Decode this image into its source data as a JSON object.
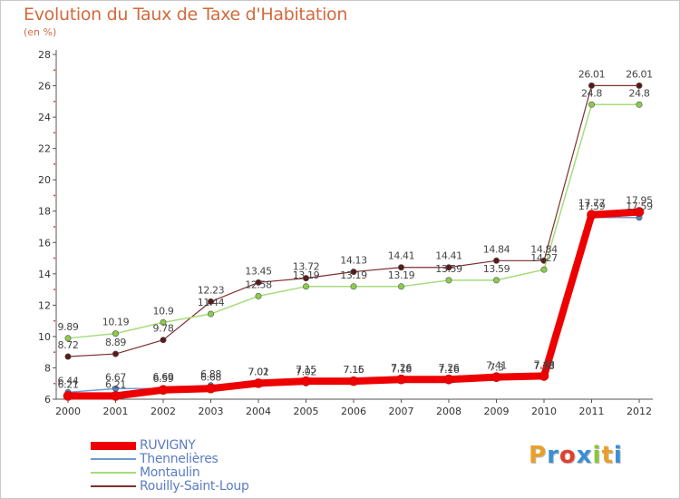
{
  "title": "Evolution du Taux de Taxe d'Habitation",
  "unit": "(en %)",
  "logo": {
    "text": "Proxiti",
    "colors": [
      "#e9a02a",
      "#3a8fd6",
      "#e0402e",
      "#3a8fd6",
      "#8cc43c",
      "#e9a02a",
      "#3a8fd6"
    ]
  },
  "chart_data": {
    "type": "line",
    "x": [
      "2000",
      "2001",
      "2002",
      "2003",
      "2004",
      "2005",
      "2006",
      "2007",
      "2008",
      "2009",
      "2010",
      "2011",
      "2012"
    ],
    "ylim": [
      6,
      28
    ],
    "yticks": [
      "6",
      "8",
      "10",
      "12",
      "14",
      "16",
      "18",
      "20",
      "22",
      "24",
      "26",
      "28"
    ],
    "grid": false,
    "legend_position": "bottom-left",
    "series": [
      {
        "name": "Rouilly-Saint-Loup",
        "color": "#7b3030",
        "marker": "#5a1a1a",
        "width": 1.2,
        "values": [
          8.72,
          8.89,
          9.78,
          12.23,
          13.45,
          13.72,
          14.13,
          14.41,
          14.41,
          14.84,
          14.84,
          26.01,
          26.01
        ],
        "labels": [
          "8.72",
          "8.89",
          "9.78",
          "12.23",
          "13.45",
          "13.72",
          "14.13",
          "14.41",
          "14.41",
          "14.84",
          "14.84",
          "26.01",
          "26.01"
        ]
      },
      {
        "name": "Montaulin",
        "color": "#a6dc7c",
        "marker": "#8ccc4c",
        "width": 1.5,
        "values": [
          9.89,
          10.19,
          10.9,
          11.44,
          12.58,
          13.19,
          13.19,
          13.19,
          13.59,
          13.59,
          14.27,
          24.8,
          24.8
        ],
        "labels": [
          "9.89",
          "10.19",
          "10.9",
          "11.44",
          "12.58",
          "13.19",
          "13.19",
          "13.19",
          "13.59",
          "13.59",
          "14.27",
          "24.8",
          "24.8"
        ]
      },
      {
        "name": "Thennelières",
        "color": "#6e9cd2",
        "marker": "#4a86cc",
        "width": 1.5,
        "values": [
          6.44,
          6.67,
          6.69,
          6.88,
          7.01,
          7.02,
          7.16,
          7.18,
          7.16,
          7.3,
          7.38,
          17.59,
          17.59
        ],
        "labels": [
          "6.44",
          "6.67",
          "6.69",
          "6.88",
          "7.01",
          "7.02",
          "7.16",
          "7.18",
          "7.16",
          "7.3",
          "7.38",
          "17.59",
          "17.59"
        ]
      },
      {
        "name": "RUVIGNY",
        "color": "#ee0000",
        "marker": "#ee0000",
        "width": 8,
        "values": [
          6.21,
          6.21,
          6.59,
          6.68,
          7.02,
          7.15,
          7.15,
          7.26,
          7.26,
          7.41,
          7.48,
          17.77,
          17.95
        ],
        "labels": [
          "6.21",
          "6.21",
          "6.59",
          "6.68",
          "7.02",
          "7.15",
          "7.15",
          "7.26",
          "7.26",
          "7.41",
          "7.48",
          "17.77",
          "17.95"
        ]
      }
    ],
    "legend": [
      "RUVIGNY",
      "Thennelières",
      "Montaulin",
      "Rouilly-Saint-Loup"
    ]
  }
}
